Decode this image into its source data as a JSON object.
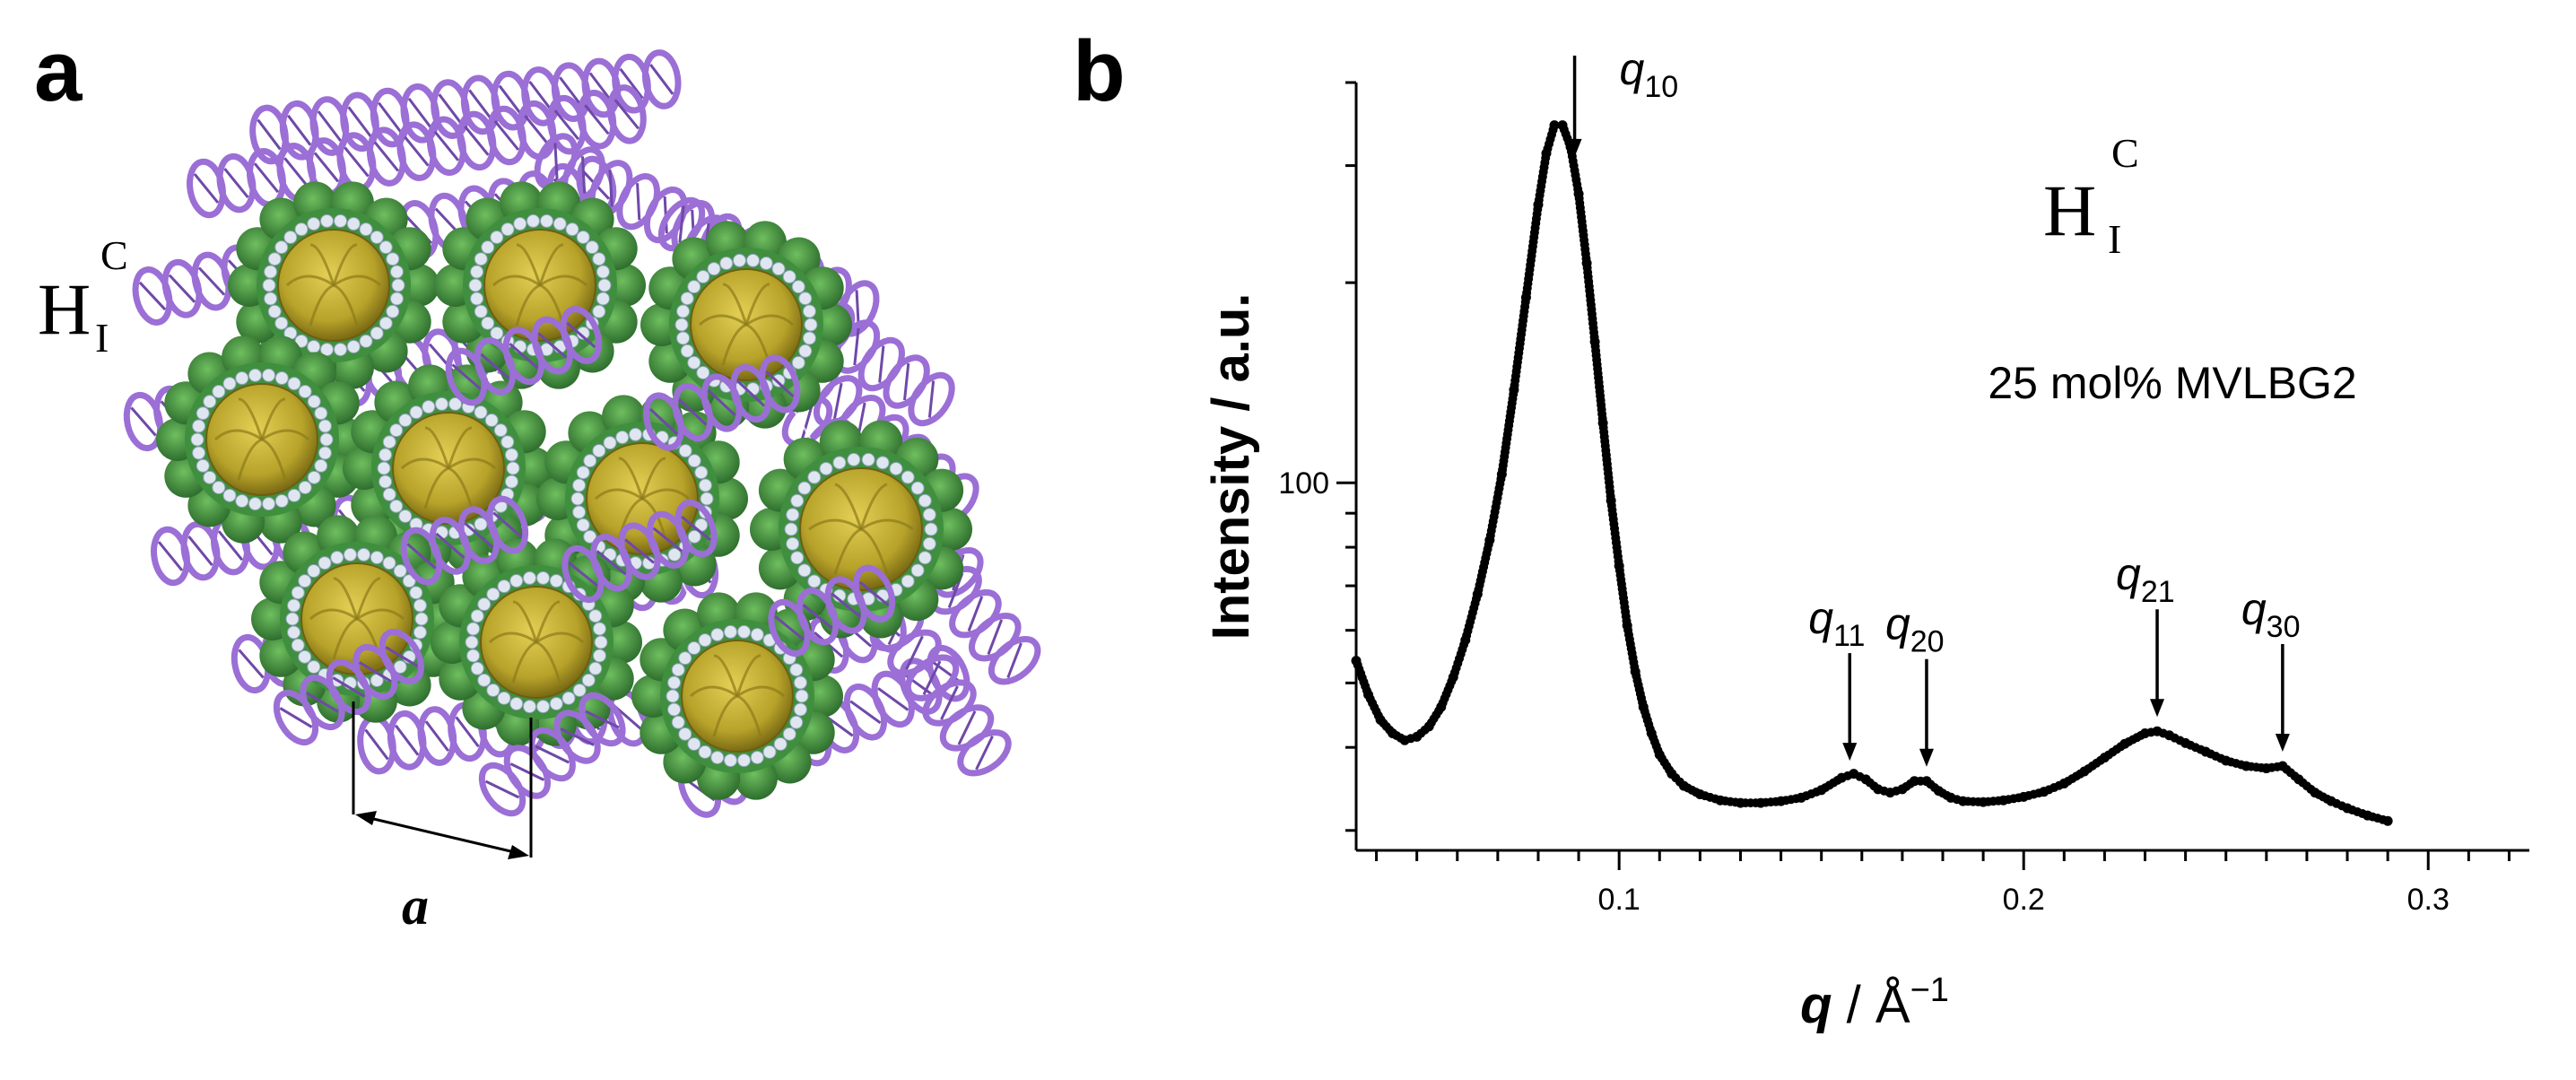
{
  "panel_a": {
    "letter": "a",
    "phase_main": "H",
    "phase_sup": "C",
    "phase_sub": "I",
    "lattice_label": "a",
    "colors": {
      "dna": "#9b6fd6",
      "dna_dark": "#6f49a8",
      "protein": "#3f8f3f",
      "core": "#b7a22a",
      "headgroup": "#dfe6f0"
    }
  },
  "panel_b": {
    "letter": "b",
    "phase_main": "H",
    "phase_sup": "C",
    "phase_sub": "I",
    "sample_label": "25 mol% MVLBG2",
    "y_axis_label": "Intensity / a.u.",
    "x_axis_label_q": "q",
    "x_axis_label_rest": " / Å",
    "x_axis_label_exp": "−1",
    "y_tick_100": "100"
  },
  "chart_data": {
    "type": "scatter",
    "xlabel": "q / Å−1",
    "ylabel": "Intensity / a.u.",
    "y_scale": "log",
    "xlim": [
      0.035,
      0.325
    ],
    "ylim": [
      28,
      400
    ],
    "x_ticks": [
      {
        "value": 0.1,
        "label": "0.1"
      },
      {
        "value": 0.2,
        "label": "0.2"
      },
      {
        "value": 0.3,
        "label": "0.3"
      }
    ],
    "y_ticks": [
      {
        "value": 100,
        "label": "100"
      }
    ],
    "series": [
      {
        "x": [
          0.035,
          0.038,
          0.041,
          0.044,
          0.047,
          0.05,
          0.053,
          0.056,
          0.059,
          0.062,
          0.065,
          0.068,
          0.071,
          0.074,
          0.077,
          0.08,
          0.082,
          0.084,
          0.086,
          0.088,
          0.09,
          0.092,
          0.094,
          0.096,
          0.098,
          0.1,
          0.102,
          0.104,
          0.106,
          0.108,
          0.11,
          0.113,
          0.116,
          0.12,
          0.125,
          0.13,
          0.135,
          0.14,
          0.145,
          0.15,
          0.155,
          0.158,
          0.161,
          0.164,
          0.167,
          0.17,
          0.173,
          0.176,
          0.179,
          0.182,
          0.185,
          0.19,
          0.195,
          0.2,
          0.205,
          0.21,
          0.215,
          0.22,
          0.225,
          0.23,
          0.233,
          0.236,
          0.24,
          0.245,
          0.25,
          0.255,
          0.26,
          0.264,
          0.268,
          0.272,
          0.276,
          0.28,
          0.285,
          0.29
        ],
        "y": [
          54,
          48,
          44,
          42,
          41,
          41.5,
          43,
          46,
          51,
          58,
          68,
          82,
          103,
          138,
          190,
          262,
          313,
          345,
          345,
          320,
          272,
          214,
          163,
          123,
          94,
          75,
          61,
          52,
          46,
          42,
          39,
          36.5,
          35,
          34,
          33.3,
          33,
          33,
          33.2,
          33.6,
          34.5,
          36,
          36.5,
          35.8,
          34.6,
          34.2,
          34.6,
          35.6,
          35.6,
          34.4,
          33.6,
          33.2,
          33.1,
          33.3,
          33.7,
          34.3,
          35.3,
          36.8,
          38.6,
          40.5,
          42,
          42.3,
          41.7,
          40.6,
          39.4,
          38.2,
          37.5,
          37.2,
          37.5,
          35.8,
          34.2,
          33.2,
          32.4,
          31.6,
          31
        ]
      }
    ],
    "annotations": [
      {
        "id": "q10",
        "label": "q",
        "sub": "10",
        "x": 0.089
      },
      {
        "id": "q11",
        "label": "q",
        "sub": "11",
        "x": 0.157
      },
      {
        "id": "q20",
        "label": "q",
        "sub": "20",
        "x": 0.176
      },
      {
        "id": "q21",
        "label": "q",
        "sub": "21",
        "x": 0.233
      },
      {
        "id": "q30",
        "label": "q",
        "sub": "30",
        "x": 0.264
      }
    ]
  }
}
